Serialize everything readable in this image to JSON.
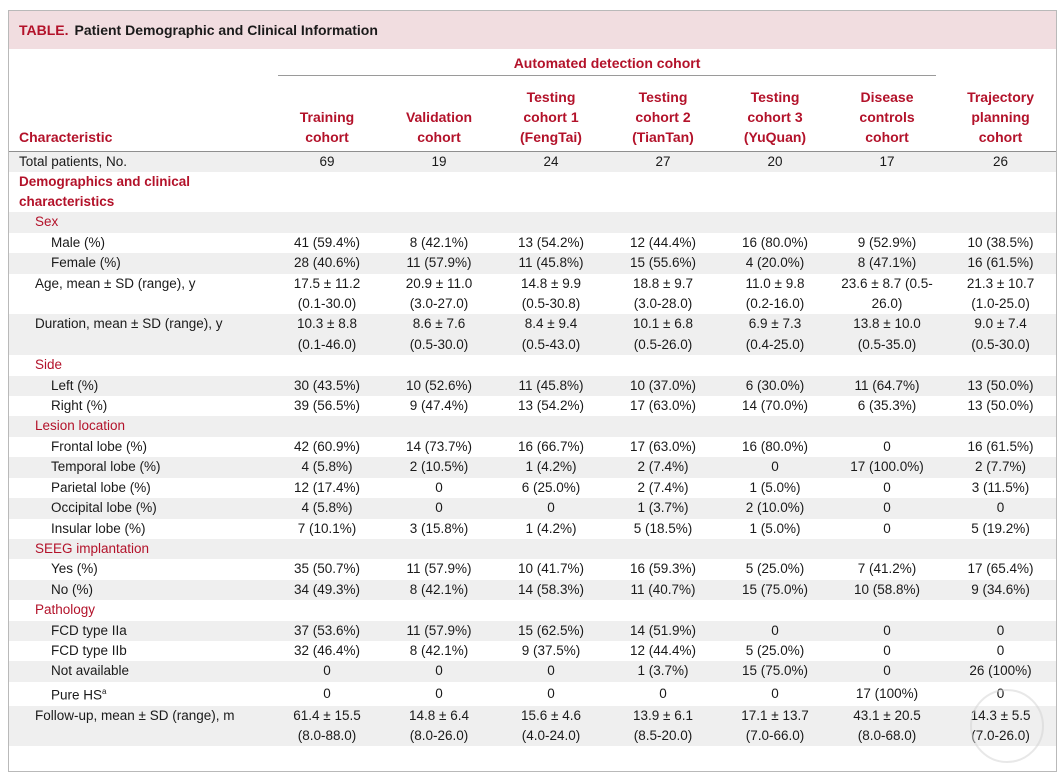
{
  "table_label": "TABLE.",
  "table_title": "Patient Demographic and Clinical Information",
  "group_header": "Automated detection cohort",
  "characteristic_header": "Characteristic",
  "columns": [
    {
      "l1": "Training",
      "l2": "cohort",
      "l3": ""
    },
    {
      "l1": "Validation",
      "l2": "cohort",
      "l3": ""
    },
    {
      "l1": "Testing",
      "l2": "cohort 1",
      "l3": "(FengTai)"
    },
    {
      "l1": "Testing",
      "l2": "cohort 2",
      "l3": "(TianTan)"
    },
    {
      "l1": "Testing",
      "l2": "cohort 3",
      "l3": "(YuQuan)"
    },
    {
      "l1": "Disease",
      "l2": "controls",
      "l3": "cohort"
    },
    {
      "l1": "Trajectory",
      "l2": "planning",
      "l3": "cohort"
    }
  ],
  "rows": {
    "total": {
      "label": "Total patients, No.",
      "v": [
        "69",
        "19",
        "24",
        "27",
        "20",
        "17",
        "26"
      ]
    },
    "demo_section": "Demographics and clinical characteristics",
    "sex": "Sex",
    "male": {
      "label": "Male (%)",
      "v": [
        "41 (59.4%)",
        "8 (42.1%)",
        "13 (54.2%)",
        "12 (44.4%)",
        "16 (80.0%)",
        "9 (52.9%)",
        "10 (38.5%)"
      ]
    },
    "female": {
      "label": "Female (%)",
      "v": [
        "28 (40.6%)",
        "11 (57.9%)",
        "11 (45.8%)",
        "15 (55.6%)",
        "4 (20.0%)",
        "8 (47.1%)",
        "16 (61.5%)"
      ]
    },
    "age": {
      "label": "Age, mean ± SD (range), y",
      "a": [
        "17.5 ± 11.2",
        "20.9 ± 11.0",
        "14.8 ± 9.9",
        "18.8 ± 9.7",
        "11.0 ± 9.8",
        "23.6 ± 8.7 (0.5-",
        "21.3 ± 10.7"
      ],
      "b": [
        "(0.1-30.0)",
        "(3.0-27.0)",
        "(0.5-30.8)",
        "(3.0-28.0)",
        "(0.2-16.0)",
        "26.0)",
        "(1.0-25.0)"
      ]
    },
    "duration": {
      "label": "Duration, mean ± SD (range), y",
      "a": [
        "10.3 ± 8.8",
        "8.6 ± 7.6",
        "8.4 ± 9.4",
        "10.1 ± 6.8",
        "6.9 ± 7.3",
        "13.8 ± 10.0",
        "9.0 ± 7.4"
      ],
      "b": [
        "(0.1-46.0)",
        "(0.5-30.0)",
        "(0.5-43.0)",
        "(0.5-26.0)",
        "(0.4-25.0)",
        "(0.5-35.0)",
        "(0.5-30.0)"
      ]
    },
    "side": "Side",
    "left": {
      "label": "Left (%)",
      "v": [
        "30 (43.5%)",
        "10 (52.6%)",
        "11 (45.8%)",
        "10 (37.0%)",
        "6 (30.0%)",
        "11 (64.7%)",
        "13 (50.0%)"
      ]
    },
    "right": {
      "label": "Right (%)",
      "v": [
        "39 (56.5%)",
        "9 (47.4%)",
        "13 (54.2%)",
        "17 (63.0%)",
        "14 (70.0%)",
        "6 (35.3%)",
        "13 (50.0%)"
      ]
    },
    "lesion": "Lesion location",
    "frontal": {
      "label": "Frontal lobe (%)",
      "v": [
        "42 (60.9%)",
        "14 (73.7%)",
        "16 (66.7%)",
        "17 (63.0%)",
        "16 (80.0%)",
        "0",
        "16 (61.5%)"
      ]
    },
    "temporal": {
      "label": "Temporal lobe (%)",
      "v": [
        "4 (5.8%)",
        "2 (10.5%)",
        "1 (4.2%)",
        "2 (7.4%)",
        "0",
        "17 (100.0%)",
        "2 (7.7%)"
      ]
    },
    "parietal": {
      "label": "Parietal lobe (%)",
      "v": [
        "12 (17.4%)",
        "0",
        "6 (25.0%)",
        "2 (7.4%)",
        "1 (5.0%)",
        "0",
        "3 (11.5%)"
      ]
    },
    "occipital": {
      "label": "Occipital lobe (%)",
      "v": [
        "4 (5.8%)",
        "0",
        "0",
        "1 (3.7%)",
        "2 (10.0%)",
        "0",
        "0"
      ]
    },
    "insular": {
      "label": "Insular lobe (%)",
      "v": [
        "7 (10.1%)",
        "3 (15.8%)",
        "1 (4.2%)",
        "5 (18.5%)",
        "1 (5.0%)",
        "0",
        "5 (19.2%)"
      ]
    },
    "seeg": "SEEG implantation",
    "yes": {
      "label": "Yes (%)",
      "v": [
        "35 (50.7%)",
        "11 (57.9%)",
        "10 (41.7%)",
        "16 (59.3%)",
        "5 (25.0%)",
        "7 (41.2%)",
        "17 (65.4%)"
      ]
    },
    "no": {
      "label": "No (%)",
      "v": [
        "34 (49.3%)",
        "8 (42.1%)",
        "14 (58.3%)",
        "11 (40.7%)",
        "15 (75.0%)",
        "10 (58.8%)",
        "9 (34.6%)"
      ]
    },
    "pathology": "Pathology",
    "fcd2a": {
      "label": "FCD type IIa",
      "v": [
        "37 (53.6%)",
        "11 (57.9%)",
        "15 (62.5%)",
        "14 (51.9%)",
        "0",
        "0",
        "0"
      ]
    },
    "fcd2b": {
      "label": "FCD type IIb",
      "v": [
        "32 (46.4%)",
        "8 (42.1%)",
        "9 (37.5%)",
        "12 (44.4%)",
        "5 (25.0%)",
        "0",
        "0"
      ]
    },
    "na": {
      "label": "Not available",
      "v": [
        "0",
        "0",
        "0",
        "1 (3.7%)",
        "15 (75.0%)",
        "0",
        "26 (100%)"
      ]
    },
    "purehs": {
      "label": "Pure HS",
      "sup": "a",
      "v": [
        "0",
        "0",
        "0",
        "0",
        "0",
        "17 (100%)",
        "0"
      ]
    },
    "followup": {
      "label": "Follow-up, mean ± SD (range), m",
      "a": [
        "61.4 ± 15.5",
        "14.8 ± 6.4",
        "15.6 ± 4.6",
        "13.9 ± 6.1",
        "17.1 ± 13.7",
        "43.1 ± 20.5",
        "14.3 ± 5.5"
      ],
      "b": [
        "(8.0-88.0)",
        "(8.0-26.0)",
        "(4.0-24.0)",
        "(8.5-20.0)",
        "(7.0-66.0)",
        "(8.0-68.0)",
        "(7.0-26.0)"
      ]
    }
  }
}
